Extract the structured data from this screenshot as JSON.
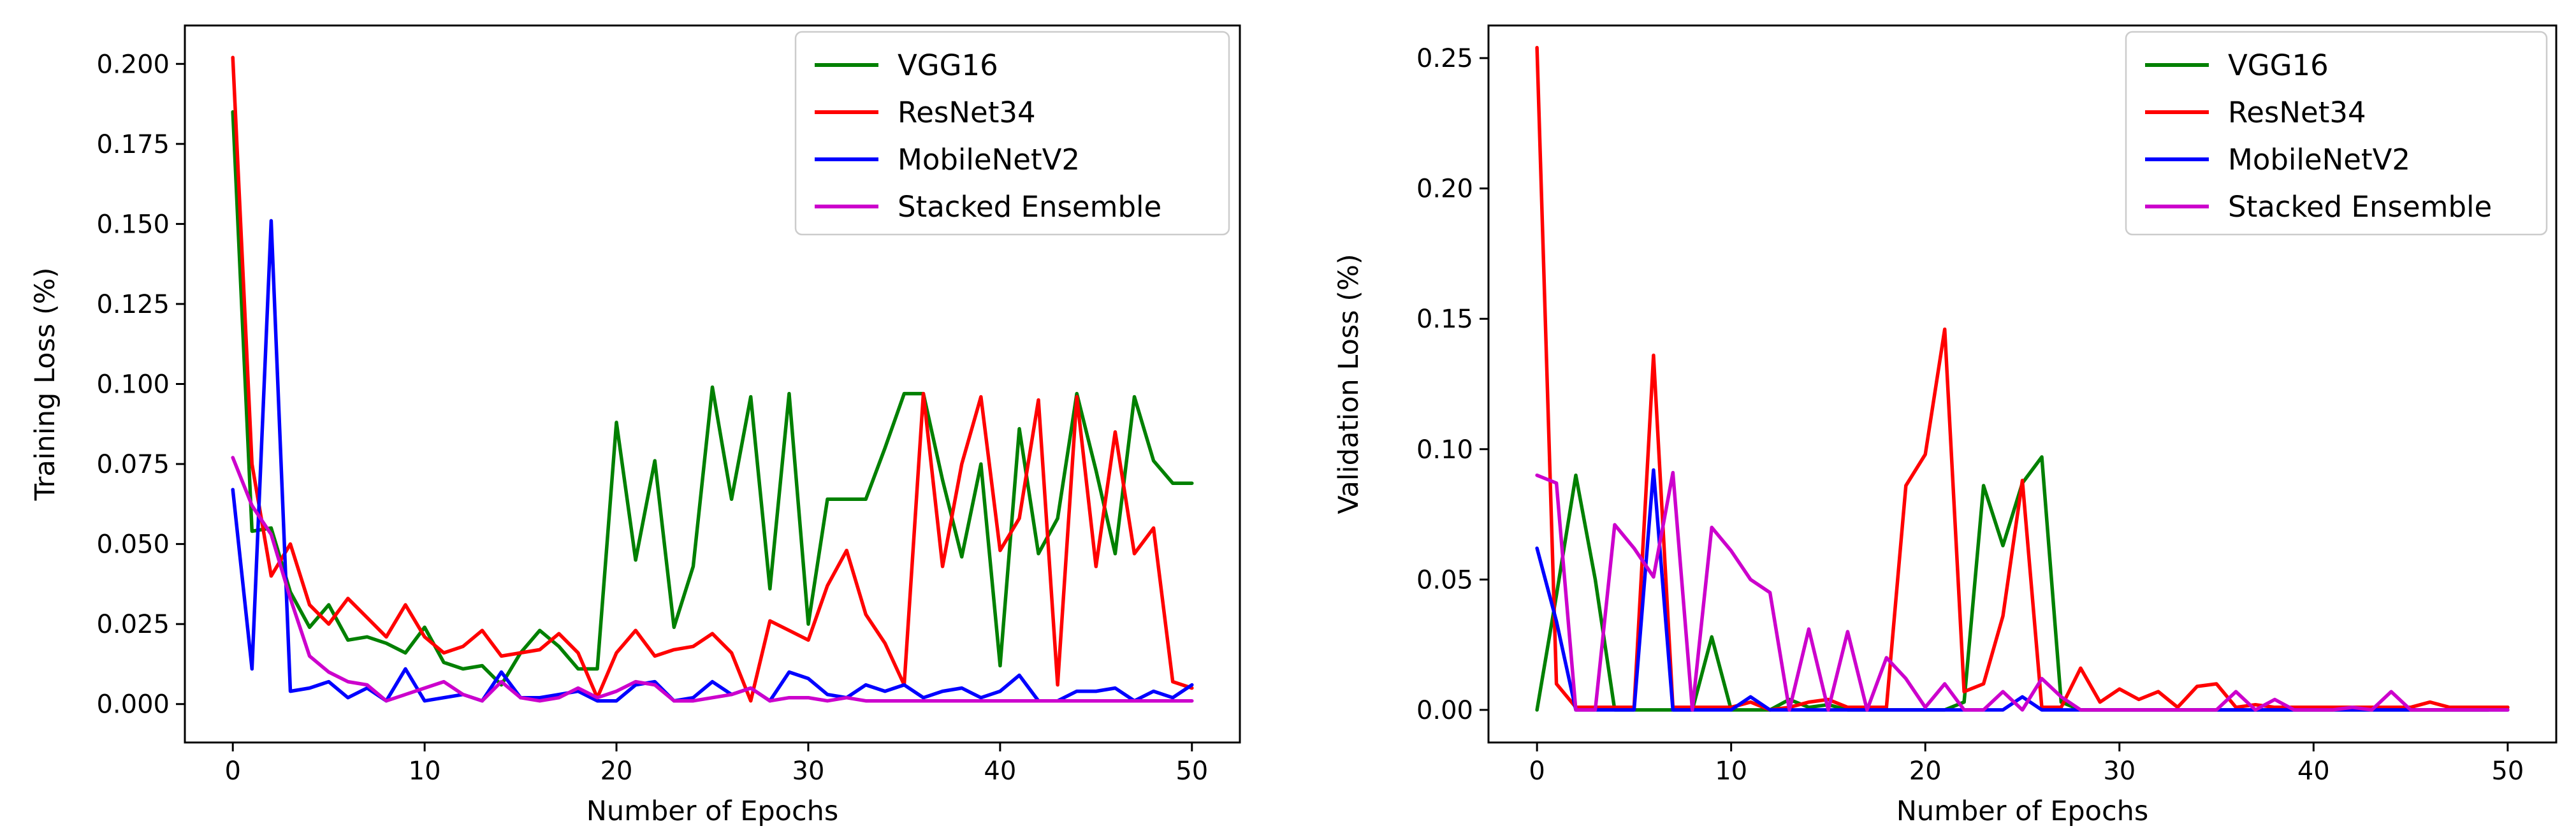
{
  "chart_data": [
    {
      "type": "line",
      "xlabel": "Number of Epochs",
      "ylabel": "Training Loss (%)",
      "xlim": [
        -2.5,
        52.5
      ],
      "ylim": [
        -0.012,
        0.212
      ],
      "xticks": [
        0,
        10,
        20,
        30,
        40,
        50
      ],
      "xtick_labels": [
        "0",
        "10",
        "20",
        "30",
        "40",
        "50"
      ],
      "yticks": [
        0.0,
        0.025,
        0.05,
        0.075,
        0.1,
        0.125,
        0.15,
        0.175,
        0.2
      ],
      "ytick_labels": [
        "0.000",
        "0.025",
        "0.050",
        "0.075",
        "0.100",
        "0.125",
        "0.150",
        "0.175",
        "0.200"
      ],
      "grid": false,
      "legend_position": "top-right",
      "series": [
        {
          "name": "VGG16",
          "color": "#008000",
          "x": [
            0,
            1,
            2,
            3,
            4,
            5,
            6,
            7,
            8,
            9,
            10,
            11,
            12,
            13,
            14,
            15,
            16,
            17,
            18,
            19,
            20,
            21,
            22,
            23,
            24,
            25,
            26,
            27,
            28,
            29,
            30,
            31,
            32,
            33,
            34,
            35,
            36,
            37,
            38,
            39,
            40,
            41,
            42,
            43,
            44,
            45,
            46,
            47,
            48,
            49,
            50
          ],
          "values": [
            0.185,
            0.054,
            0.055,
            0.035,
            0.024,
            0.031,
            0.02,
            0.021,
            0.019,
            0.016,
            0.024,
            0.013,
            0.011,
            0.012,
            0.006,
            0.016,
            0.023,
            0.018,
            0.011,
            0.011,
            0.088,
            0.045,
            0.076,
            0.024,
            0.043,
            0.099,
            0.064,
            0.096,
            0.036,
            0.097,
            0.025,
            0.064,
            0.064,
            0.064,
            0.08,
            0.097,
            0.097,
            0.07,
            0.046,
            0.075,
            0.012,
            0.086,
            0.047,
            0.058,
            0.097,
            0.073,
            0.047,
            0.096,
            0.076,
            0.069,
            0.069
          ]
        },
        {
          "name": "ResNet34",
          "color": "#ff0000",
          "x": [
            0,
            1,
            2,
            3,
            4,
            5,
            6,
            7,
            8,
            9,
            10,
            11,
            12,
            13,
            14,
            15,
            16,
            17,
            18,
            19,
            20,
            21,
            22,
            23,
            24,
            25,
            26,
            27,
            28,
            29,
            30,
            31,
            32,
            33,
            34,
            35,
            36,
            37,
            38,
            39,
            40,
            41,
            42,
            43,
            44,
            45,
            46,
            47,
            48,
            49,
            50
          ],
          "values": [
            0.202,
            0.075,
            0.04,
            0.05,
            0.031,
            0.025,
            0.033,
            0.027,
            0.021,
            0.031,
            0.021,
            0.016,
            0.018,
            0.023,
            0.015,
            0.016,
            0.017,
            0.022,
            0.016,
            0.002,
            0.016,
            0.023,
            0.015,
            0.017,
            0.018,
            0.022,
            0.016,
            0.001,
            0.026,
            0.023,
            0.02,
            0.037,
            0.048,
            0.028,
            0.019,
            0.006,
            0.097,
            0.043,
            0.075,
            0.096,
            0.048,
            0.058,
            0.095,
            0.006,
            0.096,
            0.043,
            0.085,
            0.047,
            0.055,
            0.007,
            0.005
          ]
        },
        {
          "name": "MobileNetV2",
          "color": "#0000ff",
          "x": [
            0,
            1,
            2,
            3,
            4,
            5,
            6,
            7,
            8,
            9,
            10,
            11,
            12,
            13,
            14,
            15,
            16,
            17,
            18,
            19,
            20,
            21,
            22,
            23,
            24,
            25,
            26,
            27,
            28,
            29,
            30,
            31,
            32,
            33,
            34,
            35,
            36,
            37,
            38,
            39,
            40,
            41,
            42,
            43,
            44,
            45,
            46,
            47,
            48,
            49,
            50
          ],
          "values": [
            0.067,
            0.011,
            0.151,
            0.004,
            0.005,
            0.007,
            0.002,
            0.005,
            0.001,
            0.011,
            0.001,
            0.002,
            0.003,
            0.001,
            0.01,
            0.002,
            0.002,
            0.003,
            0.004,
            0.001,
            0.001,
            0.006,
            0.007,
            0.001,
            0.002,
            0.007,
            0.003,
            0.005,
            0.001,
            0.01,
            0.008,
            0.003,
            0.002,
            0.006,
            0.004,
            0.006,
            0.002,
            0.004,
            0.005,
            0.002,
            0.004,
            0.009,
            0.001,
            0.001,
            0.004,
            0.004,
            0.005,
            0.001,
            0.004,
            0.002,
            0.006
          ]
        },
        {
          "name": "Stacked Ensemble",
          "color": "#cc00cc",
          "x": [
            0,
            1,
            2,
            3,
            4,
            5,
            6,
            7,
            8,
            9,
            10,
            11,
            12,
            13,
            14,
            15,
            16,
            17,
            18,
            19,
            20,
            21,
            22,
            23,
            24,
            25,
            26,
            27,
            28,
            29,
            30,
            31,
            32,
            33,
            34,
            35,
            36,
            37,
            38,
            39,
            40,
            41,
            42,
            43,
            44,
            45,
            46,
            47,
            48,
            49,
            50
          ],
          "values": [
            0.077,
            0.062,
            0.053,
            0.033,
            0.015,
            0.01,
            0.007,
            0.006,
            0.001,
            0.003,
            0.005,
            0.007,
            0.003,
            0.001,
            0.007,
            0.002,
            0.001,
            0.002,
            0.005,
            0.002,
            0.004,
            0.007,
            0.006,
            0.001,
            0.001,
            0.002,
            0.003,
            0.005,
            0.001,
            0.002,
            0.002,
            0.001,
            0.002,
            0.001,
            0.001,
            0.001,
            0.001,
            0.001,
            0.001,
            0.001,
            0.001,
            0.001,
            0.001,
            0.001,
            0.001,
            0.001,
            0.001,
            0.001,
            0.001,
            0.001,
            0.001
          ]
        }
      ]
    },
    {
      "type": "line",
      "xlabel": "Number of Epochs",
      "ylabel": "Validation Loss (%)",
      "xlim": [
        -2.5,
        52.5
      ],
      "ylim": [
        -0.0125,
        0.2625
      ],
      "xticks": [
        0,
        10,
        20,
        30,
        40,
        50
      ],
      "xtick_labels": [
        "0",
        "10",
        "20",
        "30",
        "40",
        "50"
      ],
      "yticks": [
        0.0,
        0.05,
        0.1,
        0.15,
        0.2,
        0.25
      ],
      "ytick_labels": [
        "0.00",
        "0.05",
        "0.10",
        "0.15",
        "0.20",
        "0.25"
      ],
      "grid": false,
      "legend_position": "top-right",
      "series": [
        {
          "name": "VGG16",
          "color": "#008000",
          "x": [
            0,
            1,
            2,
            3,
            4,
            5,
            6,
            7,
            8,
            9,
            10,
            11,
            12,
            13,
            14,
            15,
            16,
            17,
            18,
            19,
            20,
            21,
            22,
            23,
            24,
            25,
            26,
            27,
            28,
            29,
            30,
            31,
            32,
            33,
            34,
            35,
            36,
            37,
            38,
            39,
            40,
            41,
            42,
            43,
            44,
            45,
            46,
            47,
            48,
            49,
            50
          ],
          "values": [
            0.0,
            0.044,
            0.09,
            0.05,
            0.0,
            0.0,
            0.0,
            0.0,
            0.0,
            0.028,
            0.0,
            0.0,
            0.0,
            0.004,
            0.001,
            0.002,
            0.0,
            0.0,
            0.0,
            0.0,
            0.0,
            0.0,
            0.003,
            0.086,
            0.063,
            0.087,
            0.097,
            0.003,
            0.0,
            0.0,
            0.0,
            0.0,
            0.0,
            0.0,
            0.0,
            0.0,
            0.0,
            0.0,
            0.0,
            0.0,
            0.0,
            0.0,
            0.0,
            0.0,
            0.0,
            0.0,
            0.0,
            0.0,
            0.0,
            0.0,
            0.001
          ]
        },
        {
          "name": "ResNet34",
          "color": "#ff0000",
          "x": [
            0,
            1,
            2,
            3,
            4,
            5,
            6,
            7,
            8,
            9,
            10,
            11,
            12,
            13,
            14,
            15,
            16,
            17,
            18,
            19,
            20,
            21,
            22,
            23,
            24,
            25,
            26,
            27,
            28,
            29,
            30,
            31,
            32,
            33,
            34,
            35,
            36,
            37,
            38,
            39,
            40,
            41,
            42,
            43,
            44,
            45,
            46,
            47,
            48,
            49,
            50
          ],
          "values": [
            0.254,
            0.01,
            0.001,
            0.001,
            0.001,
            0.001,
            0.136,
            0.001,
            0.001,
            0.001,
            0.001,
            0.003,
            0.0,
            0.001,
            0.003,
            0.004,
            0.001,
            0.001,
            0.001,
            0.086,
            0.098,
            0.146,
            0.007,
            0.01,
            0.036,
            0.088,
            0.001,
            0.001,
            0.016,
            0.003,
            0.008,
            0.004,
            0.007,
            0.001,
            0.009,
            0.01,
            0.001,
            0.002,
            0.001,
            0.001,
            0.001,
            0.001,
            0.001,
            0.001,
            0.001,
            0.001,
            0.003,
            0.001,
            0.001,
            0.001,
            0.001
          ]
        },
        {
          "name": "MobileNetV2",
          "color": "#0000ff",
          "x": [
            0,
            1,
            2,
            3,
            4,
            5,
            6,
            7,
            8,
            9,
            10,
            11,
            12,
            13,
            14,
            15,
            16,
            17,
            18,
            19,
            20,
            21,
            22,
            23,
            24,
            25,
            26,
            27,
            28,
            29,
            30,
            31,
            32,
            33,
            34,
            35,
            36,
            37,
            38,
            39,
            40,
            41,
            42,
            43,
            44,
            45,
            46,
            47,
            48,
            49,
            50
          ],
          "values": [
            0.062,
            0.034,
            0.0,
            0.0,
            0.0,
            0.0,
            0.092,
            0.0,
            0.0,
            0.0,
            0.0,
            0.005,
            0.0,
            0.0,
            0.0,
            0.0,
            0.0,
            0.0,
            0.0,
            0.0,
            0.0,
            0.0,
            0.0,
            0.0,
            0.0,
            0.005,
            0.0,
            0.0,
            0.0,
            0.0,
            0.0,
            0.0,
            0.0,
            0.0,
            0.0,
            0.0,
            0.0,
            0.0,
            0.0,
            0.0,
            0.0,
            0.0,
            0.0,
            0.0,
            0.0,
            0.0,
            0.0,
            0.0,
            0.0,
            0.0,
            0.0
          ]
        },
        {
          "name": "Stacked Ensemble",
          "color": "#cc00cc",
          "x": [
            0,
            1,
            2,
            3,
            4,
            5,
            6,
            7,
            8,
            9,
            10,
            11,
            12,
            13,
            14,
            15,
            16,
            17,
            18,
            19,
            20,
            21,
            22,
            23,
            24,
            25,
            26,
            27,
            28,
            29,
            30,
            31,
            32,
            33,
            34,
            35,
            36,
            37,
            38,
            39,
            40,
            41,
            42,
            43,
            44,
            45,
            46,
            47,
            48,
            49,
            50
          ],
          "values": [
            0.09,
            0.087,
            0.0,
            0.0,
            0.071,
            0.062,
            0.051,
            0.091,
            0.0,
            0.07,
            0.061,
            0.05,
            0.045,
            0.0,
            0.031,
            0.0,
            0.03,
            0.0,
            0.02,
            0.012,
            0.001,
            0.01,
            0.0,
            0.0,
            0.007,
            0.0,
            0.012,
            0.005,
            0.0,
            0.0,
            0.0,
            0.0,
            0.0,
            0.0,
            0.0,
            0.0,
            0.007,
            0.0,
            0.004,
            0.0,
            0.0,
            0.0,
            0.001,
            0.0,
            0.007,
            0.0,
            0.0,
            0.0,
            0.0,
            0.0,
            0.0
          ]
        }
      ]
    }
  ]
}
